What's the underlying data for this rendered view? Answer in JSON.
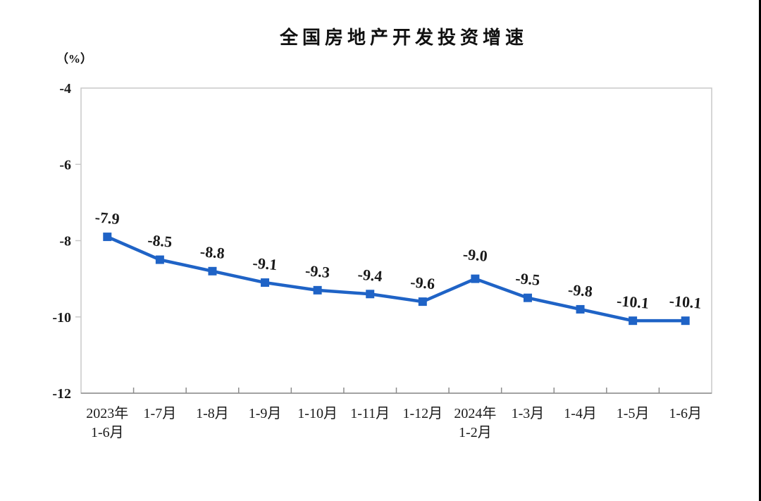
{
  "window": {
    "right_edge_line_color": "#000000",
    "background_color": "#ffffff"
  },
  "chart_data": {
    "type": "line",
    "title": "全国房地产开发投资增速",
    "unit_label": "（%）",
    "xlabel": "",
    "ylabel": "（%）",
    "categories": [
      "2023年\n1-6月",
      "1-7月",
      "1-8月",
      "1-9月",
      "1-10月",
      "1-11月",
      "1-12月",
      "2024年\n1-2月",
      "1-3月",
      "1-4月",
      "1-5月",
      "1-6月"
    ],
    "values": [
      -7.9,
      -8.5,
      -8.8,
      -9.1,
      -9.3,
      -9.4,
      -9.6,
      -9.0,
      -9.5,
      -9.8,
      -10.1,
      -10.1
    ],
    "data_labels": [
      "-7.9",
      "-8.5",
      "-8.8",
      "-9.1",
      "-9.3",
      "-9.4",
      "-9.6",
      "-9.0",
      "-9.5",
      "-9.8",
      "-10.1",
      "-10.1"
    ],
    "ylim": [
      -12,
      -4
    ],
    "yticks": [
      -4,
      -6,
      -8,
      -10,
      -12
    ],
    "grid": false,
    "legend": "none",
    "marker": "square",
    "label_position": "above",
    "line_color": "#1F63C6",
    "marker_color": "#1F63C6",
    "text_color": "#1A1A1A",
    "axis_color": "#8C8C8C",
    "border_color": "#C9C9C9"
  }
}
